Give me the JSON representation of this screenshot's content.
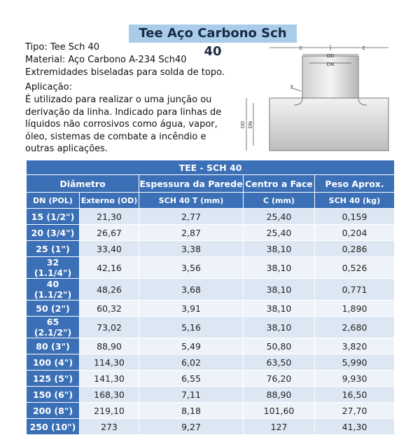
{
  "header": {
    "title": "Tee Aço Carbono Sch 40"
  },
  "description": {
    "lines": [
      "Tipo: Tee Sch 40",
      "Material: Aço Carbono A-234 Sch40",
      "Extremidades biseladas para solda de topo."
    ],
    "application_label": "Aplicação:",
    "application_lines": [
      "É utilizado para realizar o uma junção ou",
      "derivação da linha. Indicado para linhas de",
      "líquidos não corrosivos como água, vapor,",
      "óleo, sistemas de combate a incêndio e",
      "outras aplicações."
    ]
  },
  "diagram": {
    "labels": [
      "C",
      "C",
      "OD",
      "DN",
      "T",
      "OD",
      "DN"
    ]
  },
  "table": {
    "title": "TEE - SCH 40",
    "group_headers": [
      "Diâmetro",
      "Espessura da Parede",
      "Centro a Face",
      "Peso Aprox."
    ],
    "sub_headers": [
      "DN (POL)",
      "Externo (OD)",
      "SCH 40 T (mm)",
      "C (mm)",
      "SCH 40 (kg)"
    ],
    "rows": [
      [
        "15 (1/2\")",
        "21,30",
        "2,77",
        "25,40",
        "0,159"
      ],
      [
        "20 (3/4\")",
        "26,67",
        "2,87",
        "25,40",
        "0,204"
      ],
      [
        "25 (1\")",
        "33,40",
        "3,38",
        "38,10",
        "0,286"
      ],
      [
        "32 (1.1/4\")",
        "42,16",
        "3,56",
        "38,10",
        "0,526"
      ],
      [
        "40 (1.1/2\")",
        "48,26",
        "3,68",
        "38,10",
        "0,771"
      ],
      [
        "50 (2\")",
        "60,32",
        "3,91",
        "38,10",
        "1,890"
      ],
      [
        "65 (2.1/2\")",
        "73,02",
        "5,16",
        "38,10",
        "2,680"
      ],
      [
        "80 (3\")",
        "88,90",
        "5,49",
        "50,80",
        "3,820"
      ],
      [
        "100 (4\")",
        "114,30",
        "6,02",
        "63,50",
        "5,990"
      ],
      [
        "125 (5\")",
        "141,30",
        "6,55",
        "76,20",
        "9,930"
      ],
      [
        "150 (6\")",
        "168,30",
        "7,11",
        "88,90",
        "16,50"
      ],
      [
        "200 (8\")",
        "219,10",
        "8,18",
        "101,60",
        "27,70"
      ],
      [
        "250 (10\")",
        "273",
        "9,27",
        "127",
        "41,30"
      ]
    ]
  }
}
